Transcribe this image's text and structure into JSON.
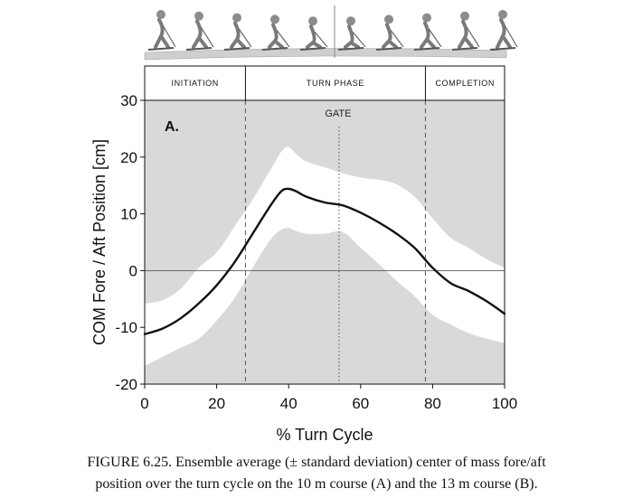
{
  "chart_data": {
    "type": "line",
    "panel_label": "A.",
    "xlabel": "% Turn Cycle",
    "ylabel": "COM Fore / Aft Position [cm]",
    "xlim": [
      0,
      100
    ],
    "ylim": [
      -20,
      30
    ],
    "x_ticks": [
      0,
      20,
      40,
      60,
      80,
      100
    ],
    "y_ticks": [
      -20,
      -10,
      0,
      10,
      20,
      30
    ],
    "phase_boundaries": [
      28,
      78
    ],
    "gate_x": 54,
    "gate_label": "GATE",
    "phases": [
      {
        "label": "INITIATION",
        "from": 0,
        "to": 28
      },
      {
        "label": "TURN PHASE",
        "from": 28,
        "to": 78
      },
      {
        "label": "COMPLETION",
        "from": 78,
        "to": 100
      }
    ],
    "x": [
      0,
      5,
      10,
      15,
      20,
      25,
      30,
      35,
      38,
      40,
      42,
      45,
      50,
      55,
      60,
      65,
      70,
      75,
      80,
      85,
      90,
      95,
      100
    ],
    "series": [
      {
        "name": "mean",
        "values": [
          -11.2,
          -10.2,
          -8.4,
          -5.8,
          -2.6,
          1.5,
          6.5,
          11.5,
          14.0,
          14.4,
          14.0,
          13.0,
          12.0,
          11.5,
          10.2,
          8.5,
          6.5,
          4.0,
          0.5,
          -2.2,
          -3.6,
          -5.4,
          -7.6
        ]
      },
      {
        "name": "mean + SD",
        "values": [
          -5.8,
          -5.2,
          -3.2,
          0.5,
          3.2,
          7.8,
          12.5,
          17.8,
          21.0,
          21.8,
          20.6,
          19.2,
          18.2,
          17.2,
          16.4,
          16.0,
          15.2,
          13.0,
          9.2,
          5.8,
          4.0,
          2.0,
          0.5
        ]
      },
      {
        "name": "mean - SD",
        "values": [
          -16.8,
          -15.2,
          -13.6,
          -12.0,
          -8.8,
          -4.8,
          0.5,
          5.5,
          7.2,
          7.5,
          7.0,
          6.5,
          6.5,
          6.8,
          4.0,
          1.2,
          -1.8,
          -4.5,
          -7.8,
          -9.5,
          -11.0,
          -12.0,
          -12.8
        ]
      }
    ],
    "colors": {
      "background": "#d9d9d9",
      "sd_band": "#ffffff",
      "mean_line": "#111111",
      "figure_strip": "#e9e9e9"
    },
    "caption_lines": [
      "FIGURE 6.25.  Ensemble average (± standard deviation) center of mass fore/aft",
      "position over the turn cycle on the 10 m course (A) and the 13 m course (B)."
    ]
  }
}
